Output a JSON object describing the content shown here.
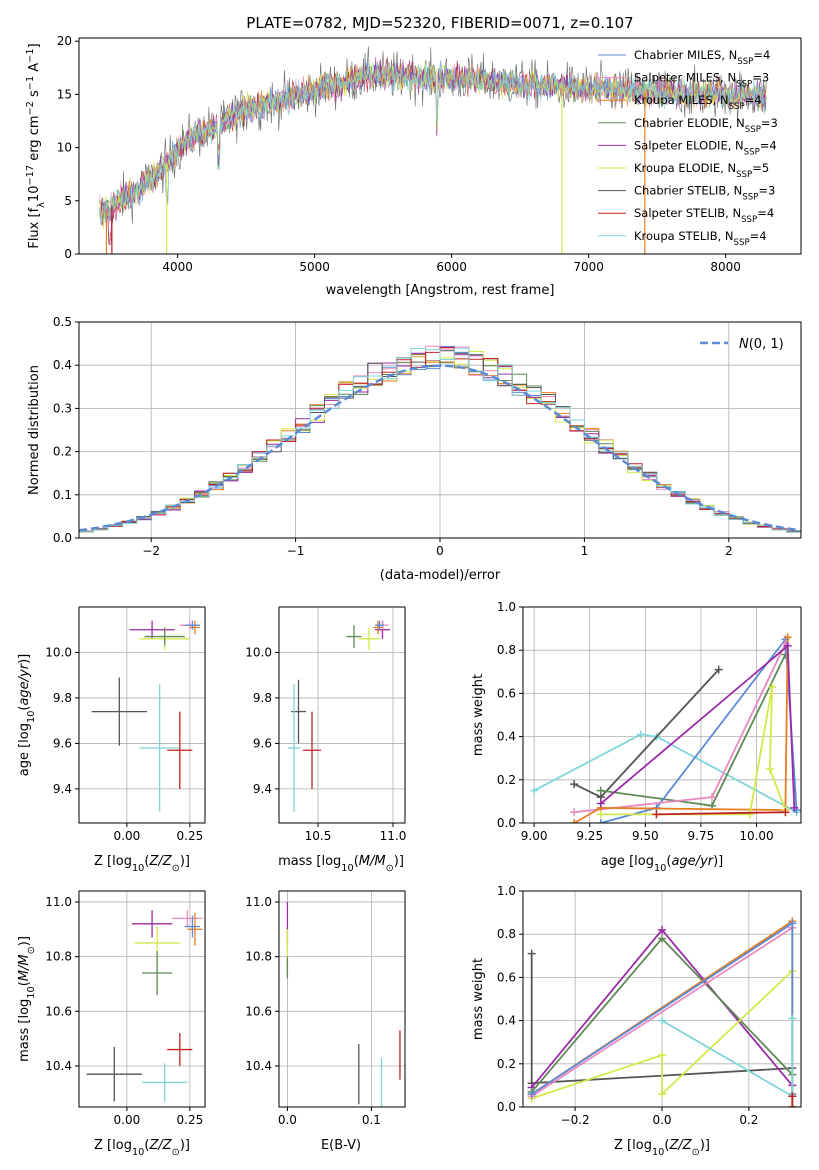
{
  "colors": {
    "chabrier_miles": "#5b8bd6",
    "salpeter_miles": "#e98ac0",
    "kroupa_miles": "#e67e22",
    "chabrier_elodie": "#5e8a55",
    "salpeter_elodie": "#9b2aa6",
    "kroupa_elodie": "#d4e84a",
    "chabrier_stelib": "#555555",
    "salpeter_stelib": "#c02222",
    "kroupa_stelib": "#7fd6d8"
  },
  "chart_data": [
    {
      "id": "spectrum",
      "type": "line",
      "title": "PLATE=0782, MJD=52320, FIBERID=0071, z=0.107",
      "xlabel": "wavelength [Angstrom, rest frame]",
      "ylabel": "Flux [f_λ10^-17 erg cm^-2 s^-1 A^-1]",
      "xlim": [
        3280,
        8550
      ],
      "ylim": [
        0,
        20.3
      ],
      "xticks": [
        4000,
        5000,
        6000,
        7000,
        8000
      ],
      "yticks": [
        0,
        5,
        10,
        15,
        20
      ],
      "continuum": {
        "x": [
          3430,
          3500,
          3600,
          3700,
          3800,
          3900,
          4000,
          4100,
          4200,
          4300,
          4400,
          4500,
          4600,
          4700,
          4800,
          4900,
          5000,
          5100,
          5200,
          5300,
          5400,
          5500,
          5600,
          5700,
          5800,
          5900,
          6000,
          6100,
          6200,
          6300,
          6400,
          6500,
          6600,
          6700,
          6800,
          6900,
          7000,
          7100,
          7200,
          7300,
          7400,
          7500,
          7600,
          7700,
          7800,
          7900,
          8000,
          8100,
          8200,
          8300
        ],
        "y": [
          3.8,
          4.3,
          5.2,
          6.0,
          7.0,
          8.2,
          9.8,
          11.0,
          11.5,
          12.2,
          13.0,
          13.6,
          14.0,
          14.3,
          14.6,
          15.0,
          15.4,
          15.8,
          16.0,
          16.5,
          16.8,
          16.8,
          16.7,
          16.7,
          16.6,
          16.5,
          16.4,
          16.5,
          16.4,
          16.2,
          16.1,
          16.0,
          15.9,
          15.8,
          15.8,
          15.6,
          15.5,
          15.5,
          15.4,
          15.3,
          15.2,
          15.3,
          15.1,
          15.0,
          15.0,
          15.0,
          15.0,
          15.0,
          14.9,
          14.8
        ]
      },
      "series": [
        {
          "name": "Chabrier MILES, N_SSP=4",
          "color_key": "chabrier_miles"
        },
        {
          "name": "Salpeter MILES, N_SSP=3",
          "color_key": "salpeter_miles"
        },
        {
          "name": "Kroupa MILES, N_SSP=4",
          "color_key": "kroupa_miles"
        },
        {
          "name": "Chabrier ELODIE, N_SSP=3",
          "color_key": "chabrier_elodie"
        },
        {
          "name": "Salpeter ELODIE, N_SSP=4",
          "color_key": "salpeter_elodie"
        },
        {
          "name": "Kroupa ELODIE, N_SSP=5",
          "color_key": "kroupa_elodie"
        },
        {
          "name": "Chabrier STELIB, N_SSP=3",
          "color_key": "chabrier_stelib"
        },
        {
          "name": "Salpeter STELIB, N_SSP=4",
          "color_key": "salpeter_stelib"
        },
        {
          "name": "Kroupa STELIB, N_SSP=4",
          "color_key": "kroupa_stelib"
        }
      ],
      "legend_position": "top-right"
    },
    {
      "id": "residuals",
      "type": "histogram",
      "xlabel": "(data-model)/error",
      "ylabel": "Normed distribution",
      "xlim": [
        -2.5,
        2.5
      ],
      "ylim": [
        0,
        0.5
      ],
      "xticks": [
        -2,
        -1,
        0,
        1,
        2
      ],
      "yticks": [
        0.0,
        0.1,
        0.2,
        0.3,
        0.4,
        0.5
      ],
      "grid": true,
      "gaussian_label": "N(0,1)",
      "gaussian_color": "#5b8bd6",
      "bin_width": 0.1,
      "legend_position": "top-right"
    },
    {
      "id": "age_vs_z",
      "type": "errorbar",
      "xlabel": "Z [log10(Z/Z⊙)]",
      "ylabel": "age [log10(age/yr)]",
      "xlim": [
        -0.19,
        0.31
      ],
      "ylim": [
        9.25,
        10.2
      ],
      "xticks": [
        0.0,
        0.25
      ],
      "yticks": [
        9.4,
        9.6,
        9.8,
        10.0
      ],
      "grid": true,
      "points": [
        {
          "c": "salpeter_elodie",
          "x": 0.1,
          "xe": 0.09,
          "y": 10.1,
          "ye": 0.04
        },
        {
          "c": "kroupa_elodie",
          "x": 0.15,
          "xe": 0.1,
          "y": 10.06,
          "ye": 0.05
        },
        {
          "c": "chabrier_elodie",
          "x": 0.15,
          "xe": 0.08,
          "y": 10.07,
          "ye": 0.04
        },
        {
          "c": "salpeter_miles",
          "x": 0.25,
          "xe": 0.04,
          "y": 10.12,
          "ye": 0.02
        },
        {
          "c": "kroupa_miles",
          "x": 0.27,
          "xe": 0.02,
          "y": 10.11,
          "ye": 0.03
        },
        {
          "c": "chabrier_miles",
          "x": 0.26,
          "xe": 0.03,
          "y": 10.12,
          "ye": 0.02
        },
        {
          "c": "chabrier_stelib",
          "x": -0.03,
          "xe": 0.11,
          "y": 9.74,
          "ye": 0.15
        },
        {
          "c": "kroupa_stelib",
          "x": 0.13,
          "xe": 0.08,
          "y": 9.58,
          "ye": 0.28
        },
        {
          "c": "salpeter_stelib",
          "x": 0.21,
          "xe": 0.05,
          "y": 9.57,
          "ye": 0.17
        }
      ]
    },
    {
      "id": "age_vs_mass",
      "type": "errorbar",
      "xlabel": "mass [log10(M/M⊙)]",
      "ylabel": "",
      "xlim": [
        10.24,
        11.08
      ],
      "ylim": [
        9.25,
        10.2
      ],
      "xticks": [
        10.5,
        11.0
      ],
      "yticks": [
        9.4,
        9.6,
        9.8,
        10.0
      ],
      "grid": true,
      "points": [
        {
          "c": "chabrier_elodie",
          "x": 10.74,
          "xe": 0.05,
          "y": 10.07,
          "ye": 0.05
        },
        {
          "c": "kroupa_elodie",
          "x": 10.84,
          "xe": 0.07,
          "y": 10.06,
          "ye": 0.05
        },
        {
          "c": "salpeter_elodie",
          "x": 10.93,
          "xe": 0.05,
          "y": 10.1,
          "ye": 0.04
        },
        {
          "c": "salpeter_miles",
          "x": 10.93,
          "xe": 0.04,
          "y": 10.12,
          "ye": 0.02
        },
        {
          "c": "kroupa_miles",
          "x": 10.9,
          "xe": 0.03,
          "y": 10.11,
          "ye": 0.03
        },
        {
          "c": "chabrier_miles",
          "x": 10.91,
          "xe": 0.03,
          "y": 10.12,
          "ye": 0.02
        },
        {
          "c": "chabrier_stelib",
          "x": 10.37,
          "xe": 0.05,
          "y": 9.74,
          "ye": 0.14
        },
        {
          "c": "kroupa_stelib",
          "x": 10.34,
          "xe": 0.04,
          "y": 9.58,
          "ye": 0.28
        },
        {
          "c": "salpeter_stelib",
          "x": 10.46,
          "xe": 0.06,
          "y": 9.57,
          "ye": 0.17
        }
      ]
    },
    {
      "id": "weight_vs_age",
      "type": "line",
      "xlabel": "age [log10(age/yr)]",
      "ylabel": "mass weight",
      "xlim": [
        8.95,
        10.2
      ],
      "ylim": [
        0,
        1.0
      ],
      "xticks": [
        9.0,
        9.25,
        9.5,
        9.75,
        10.0
      ],
      "yticks": [
        0.0,
        0.2,
        0.4,
        0.6,
        0.8,
        1.0
      ],
      "grid": true,
      "series": [
        {
          "c": "kroupa_stelib",
          "x": [
            9.0,
            9.48,
            9.55,
            10.18
          ],
          "y": [
            0.15,
            0.41,
            0.4,
            0.05
          ]
        },
        {
          "c": "chabrier_stelib",
          "x": [
            9.18,
            9.3,
            9.83
          ],
          "y": [
            0.18,
            0.12,
            0.71
          ]
        },
        {
          "c": "chabrier_elodie",
          "x": [
            9.3,
            9.8,
            10.13
          ],
          "y": [
            0.15,
            0.08,
            0.78
          ]
        },
        {
          "c": "chabrier_miles",
          "x": [
            9.3,
            9.55,
            10.13,
            10.18
          ],
          "y": [
            0.0,
            0.07,
            0.85,
            0.06
          ]
        },
        {
          "c": "salpeter_miles",
          "x": [
            9.18,
            9.8,
            10.13
          ],
          "y": [
            0.05,
            0.12,
            0.83
          ]
        },
        {
          "c": "kroupa_miles",
          "x": [
            9.18,
            9.3,
            10.13,
            10.14
          ],
          "y": [
            0.0,
            0.07,
            0.06,
            0.86
          ]
        },
        {
          "c": "salpeter_elodie",
          "x": [
            9.3,
            10.14,
            10.17
          ],
          "y": [
            0.09,
            0.82,
            0.07
          ]
        },
        {
          "c": "kroupa_elodie",
          "x": [
            9.3,
            9.97,
            10.07,
            10.06,
            10.13
          ],
          "y": [
            0.04,
            0.04,
            0.63,
            0.25,
            0.06
          ]
        },
        {
          "c": "salpeter_stelib",
          "x": [
            9.55,
            10.13
          ],
          "y": [
            0.04,
            0.05
          ]
        }
      ]
    },
    {
      "id": "mass_vs_z",
      "type": "errorbar",
      "xlabel": "Z [log10(Z/Z⊙)]",
      "ylabel": "mass [log10(M/M⊙)]",
      "xlim": [
        -0.19,
        0.31
      ],
      "ylim": [
        10.25,
        11.04
      ],
      "xticks": [
        0.0,
        0.25
      ],
      "yticks": [
        10.4,
        10.6,
        10.8,
        11.0
      ],
      "grid": true,
      "points": [
        {
          "c": "salpeter_elodie",
          "x": 0.1,
          "xe": 0.08,
          "y": 10.92,
          "ye": 0.05
        },
        {
          "c": "kroupa_elodie",
          "x": 0.12,
          "xe": 0.09,
          "y": 10.85,
          "ye": 0.06
        },
        {
          "c": "chabrier_elodie",
          "x": 0.12,
          "xe": 0.06,
          "y": 10.74,
          "ye": 0.08
        },
        {
          "c": "salpeter_miles",
          "x": 0.24,
          "xe": 0.06,
          "y": 10.94,
          "ye": 0.03
        },
        {
          "c": "kroupa_miles",
          "x": 0.27,
          "xe": 0.03,
          "y": 10.9,
          "ye": 0.06
        },
        {
          "c": "chabrier_miles",
          "x": 0.26,
          "xe": 0.03,
          "y": 10.91,
          "ye": 0.04
        },
        {
          "c": "chabrier_stelib",
          "x": -0.05,
          "xe": 0.11,
          "y": 10.37,
          "ye": 0.1
        },
        {
          "c": "kroupa_stelib",
          "x": 0.15,
          "xe": 0.09,
          "y": 10.34,
          "ye": 0.07
        },
        {
          "c": "salpeter_stelib",
          "x": 0.21,
          "xe": 0.05,
          "y": 10.46,
          "ye": 0.06
        }
      ]
    },
    {
      "id": "mass_vs_ebv",
      "type": "errorbar",
      "xlabel": "E(B-V)",
      "ylabel": "",
      "xlim": [
        -0.01,
        0.14
      ],
      "ylim": [
        10.25,
        11.04
      ],
      "xticks": [
        0.0,
        0.1
      ],
      "yticks": [
        10.4,
        10.6,
        10.8,
        11.0
      ],
      "grid": true,
      "points": [
        {
          "c": "salpeter_elodie",
          "x": 0.0,
          "xe": 0.0,
          "y": 10.92,
          "ye": 0.08
        },
        {
          "c": "kroupa_elodie",
          "x": 0.0,
          "xe": 0.0,
          "y": 10.82,
          "ye": 0.08
        },
        {
          "c": "chabrier_elodie",
          "x": 0.0,
          "xe": 0.0,
          "y": 10.76,
          "ye": 0.04
        },
        {
          "c": "chabrier_stelib",
          "x": 0.085,
          "xe": 0.0,
          "y": 10.37,
          "ye": 0.11
        },
        {
          "c": "kroupa_stelib",
          "x": 0.112,
          "xe": 0.0,
          "y": 10.34,
          "ye": 0.09
        },
        {
          "c": "salpeter_stelib",
          "x": 0.134,
          "xe": 0.0,
          "y": 10.44,
          "ye": 0.09
        }
      ]
    },
    {
      "id": "weight_vs_z",
      "type": "line",
      "xlabel": "Z [log10(Z/Z⊙)]",
      "ylabel": "mass weight",
      "xlim": [
        -0.32,
        0.32
      ],
      "ylim": [
        0,
        1.0
      ],
      "xticks": [
        -0.2,
        0.0,
        0.2
      ],
      "yticks": [
        0.0,
        0.2,
        0.4,
        0.6,
        0.8,
        1.0
      ],
      "grid": true,
      "series": [
        {
          "c": "chabrier_stelib",
          "x": [
            -0.3,
            -0.3,
            0.3
          ],
          "y": [
            0.71,
            0.11,
            0.18
          ]
        },
        {
          "c": "salpeter_elodie",
          "x": [
            -0.3,
            0.0,
            0.3,
            0.3
          ],
          "y": [
            0.09,
            0.82,
            0.1,
            0.05
          ]
        },
        {
          "c": "chabrier_elodie",
          "x": [
            -0.3,
            0.0,
            0.3
          ],
          "y": [
            0.07,
            0.78,
            0.15
          ]
        },
        {
          "c": "kroupa_elodie",
          "x": [
            -0.3,
            0.0,
            0.0,
            0.3,
            0.3
          ],
          "y": [
            0.04,
            0.24,
            0.06,
            0.63,
            0.06
          ]
        },
        {
          "c": "salpeter_miles",
          "x": [
            -0.3,
            0.3
          ],
          "y": [
            0.05,
            0.83
          ]
        },
        {
          "c": "kroupa_miles",
          "x": [
            -0.3,
            0.3,
            0.3
          ],
          "y": [
            0.06,
            0.86,
            0.0
          ]
        },
        {
          "c": "chabrier_miles",
          "x": [
            -0.3,
            0.3,
            0.3
          ],
          "y": [
            0.06,
            0.85,
            0.06
          ]
        },
        {
          "c": "kroupa_stelib",
          "x": [
            0.0,
            0.3,
            0.3
          ],
          "y": [
            0.4,
            0.05,
            0.41
          ]
        },
        {
          "c": "salpeter_stelib",
          "x": [
            0.3,
            0.3
          ],
          "y": [
            0.0,
            0.05
          ]
        }
      ]
    }
  ]
}
